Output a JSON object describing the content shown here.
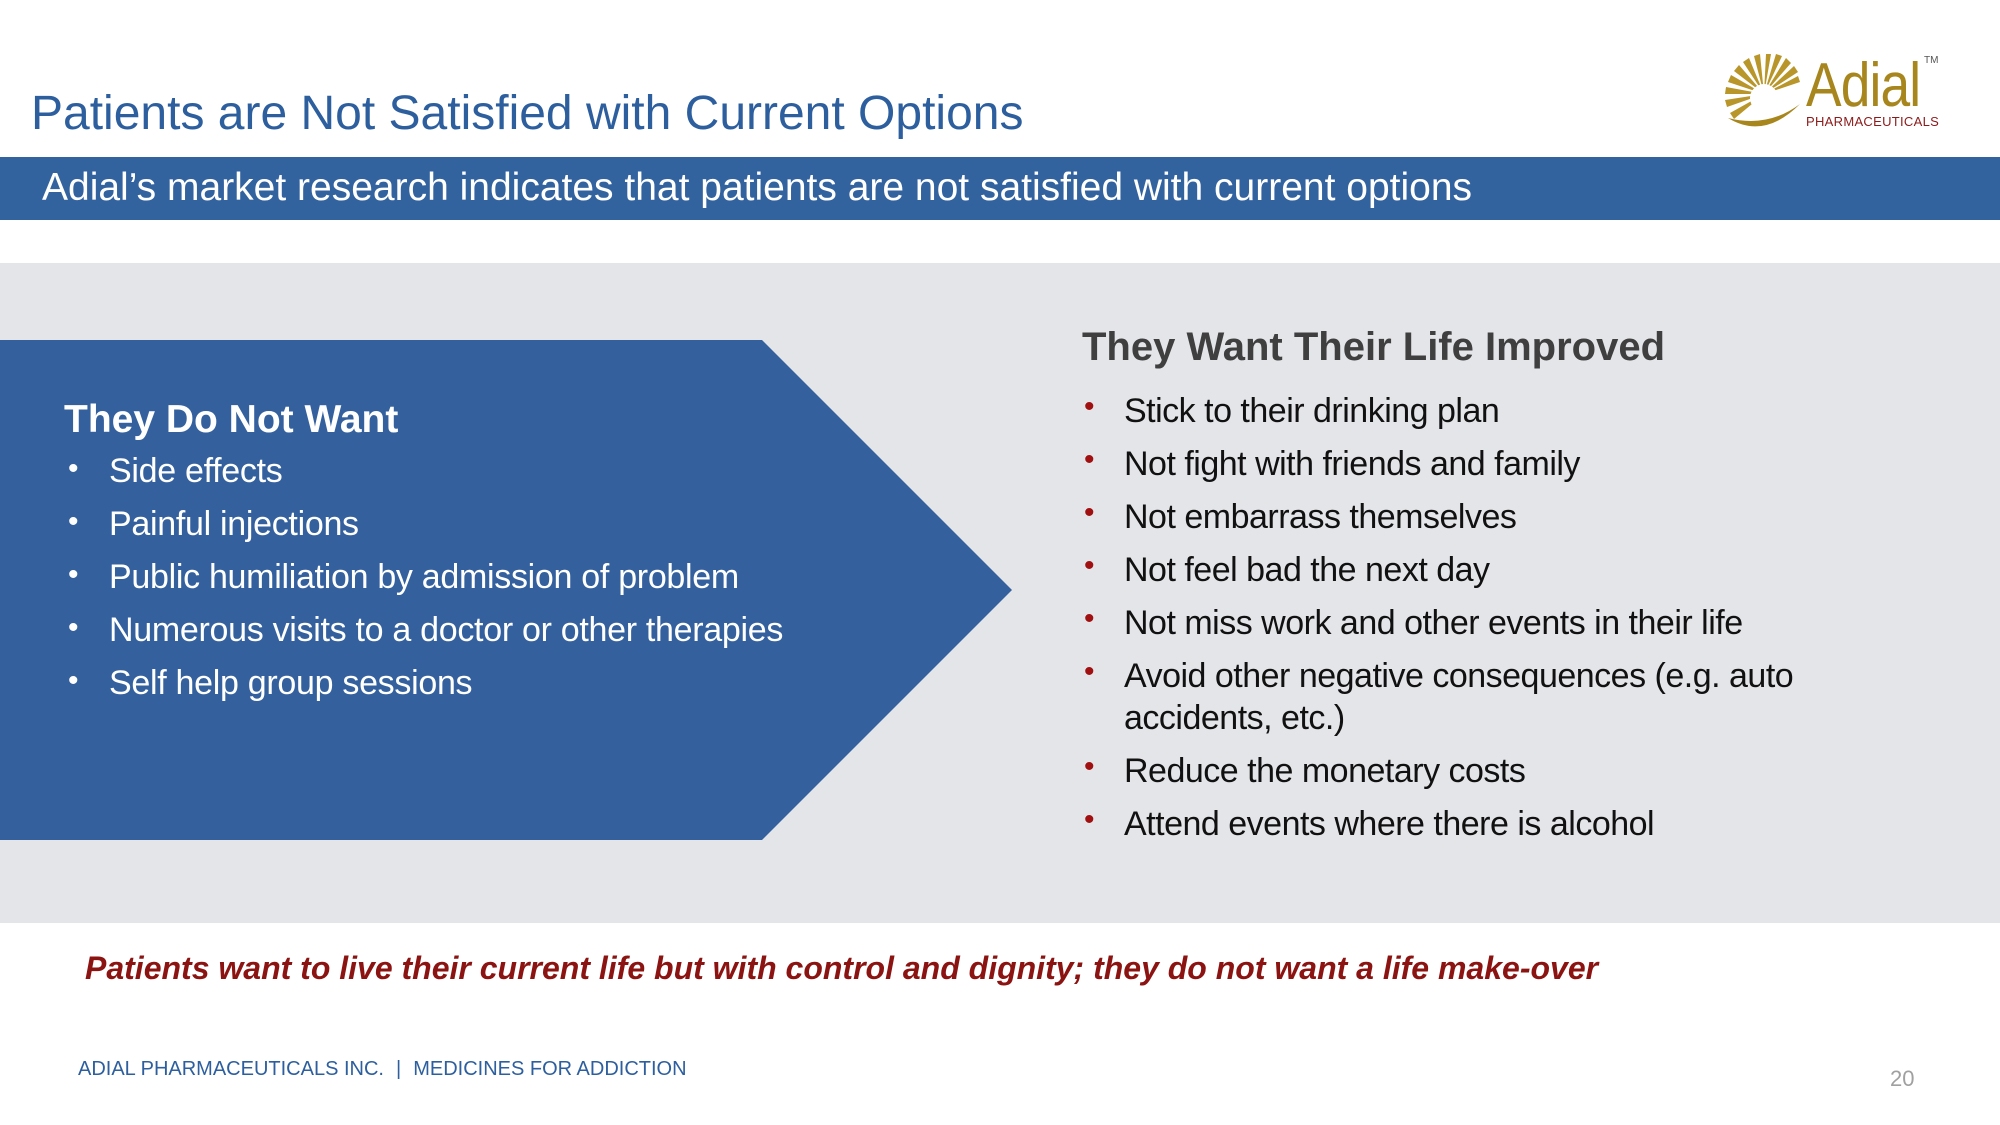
{
  "slide": {
    "title": "Patients are Not Satisfied with Current Options",
    "subtitle": "Adial’s market research indicates that patients are not satisfied with current options",
    "page_number": "20"
  },
  "logo": {
    "name": "Adial",
    "tm": "TM",
    "sub": "PHARMACEUTICALS",
    "icon": "sunburst-logo-icon"
  },
  "left": {
    "heading": "They Do Not Want",
    "items": [
      "Side effects",
      "Painful injections",
      "Public humiliation by admission of  problem",
      "Numerous visits to a doctor or other therapies",
      "Self help group sessions"
    ]
  },
  "right": {
    "heading": "They Want Their Life Improved",
    "items": [
      "Stick to their drinking plan",
      "Not fight with friends and family",
      "Not embarrass themselves",
      "Not feel bad the next day",
      "Not miss work and other events in their life",
      "Avoid other negative consequences (e.g. auto accidents, etc.)",
      "Reduce the monetary costs",
      "Attend events where there is alcohol"
    ]
  },
  "tagline": "Patients want to live their current life but with control and dignity; they do not want a life  make-over",
  "footer": {
    "company": "ADIAL PHARMACEUTICALS INC.",
    "separator": "|",
    "tagline": "MEDICINES FOR ADDICTION"
  },
  "colors": {
    "title_blue": "#2d5f9e",
    "band_blue": "#33639f",
    "arrow_blue": "#34619e",
    "panel_gray": "#e4e5e9",
    "bullet_red": "#a01010",
    "tagline_red": "#8b1412",
    "logo_gold": "#a8861e"
  }
}
